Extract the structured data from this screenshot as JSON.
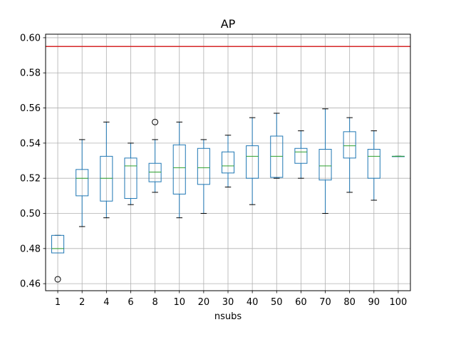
{
  "chart_data": {
    "type": "boxplot",
    "title": "AP",
    "xlabel": "nsubs",
    "ylabel": "",
    "ylim": [
      0.456,
      0.602
    ],
    "yticks": [
      0.46,
      0.48,
      0.5,
      0.52,
      0.54,
      0.56,
      0.58,
      0.6
    ],
    "ytick_labels": [
      "0.46",
      "0.48",
      "0.50",
      "0.52",
      "0.54",
      "0.56",
      "0.58",
      "0.60"
    ],
    "grid": true,
    "reference_line": {
      "y": 0.595,
      "color": "#d62728"
    },
    "box_color": "#1f77b4",
    "median_color": "#2ca02c",
    "categories": [
      "1",
      "2",
      "4",
      "6",
      "8",
      "10",
      "20",
      "30",
      "40",
      "50",
      "60",
      "70",
      "80",
      "90",
      "100"
    ],
    "boxes": [
      {
        "whislo": 0.4775,
        "q1": 0.4775,
        "med": 0.48,
        "q3": 0.4875,
        "whishi": 0.4875,
        "fliers": [
          0.4625
        ]
      },
      {
        "whislo": 0.4925,
        "q1": 0.51,
        "med": 0.52,
        "q3": 0.525,
        "whishi": 0.542,
        "fliers": []
      },
      {
        "whislo": 0.4975,
        "q1": 0.507,
        "med": 0.52,
        "q3": 0.5325,
        "whishi": 0.552,
        "fliers": []
      },
      {
        "whislo": 0.505,
        "q1": 0.5085,
        "med": 0.527,
        "q3": 0.5315,
        "whishi": 0.54,
        "fliers": []
      },
      {
        "whislo": 0.512,
        "q1": 0.518,
        "med": 0.5235,
        "q3": 0.5285,
        "whishi": 0.542,
        "fliers": [
          0.552
        ]
      },
      {
        "whislo": 0.4975,
        "q1": 0.511,
        "med": 0.526,
        "q3": 0.539,
        "whishi": 0.552,
        "fliers": []
      },
      {
        "whislo": 0.5,
        "q1": 0.5165,
        "med": 0.526,
        "q3": 0.537,
        "whishi": 0.542,
        "fliers": []
      },
      {
        "whislo": 0.515,
        "q1": 0.523,
        "med": 0.527,
        "q3": 0.535,
        "whishi": 0.5445,
        "fliers": []
      },
      {
        "whislo": 0.505,
        "q1": 0.52,
        "med": 0.5325,
        "q3": 0.5385,
        "whishi": 0.5545,
        "fliers": []
      },
      {
        "whislo": 0.52,
        "q1": 0.5205,
        "med": 0.5325,
        "q3": 0.544,
        "whishi": 0.557,
        "fliers": []
      },
      {
        "whislo": 0.52,
        "q1": 0.5285,
        "med": 0.535,
        "q3": 0.537,
        "whishi": 0.547,
        "fliers": []
      },
      {
        "whislo": 0.5,
        "q1": 0.519,
        "med": 0.527,
        "q3": 0.5365,
        "whishi": 0.5595,
        "fliers": []
      },
      {
        "whislo": 0.512,
        "q1": 0.5315,
        "med": 0.5385,
        "q3": 0.5465,
        "whishi": 0.5545,
        "fliers": []
      },
      {
        "whislo": 0.5075,
        "q1": 0.52,
        "med": 0.5325,
        "q3": 0.5365,
        "whishi": 0.547,
        "fliers": []
      },
      {
        "whislo": 0.5325,
        "q1": 0.5325,
        "med": 0.5325,
        "q3": 0.5325,
        "whishi": 0.5325,
        "fliers": []
      }
    ]
  }
}
